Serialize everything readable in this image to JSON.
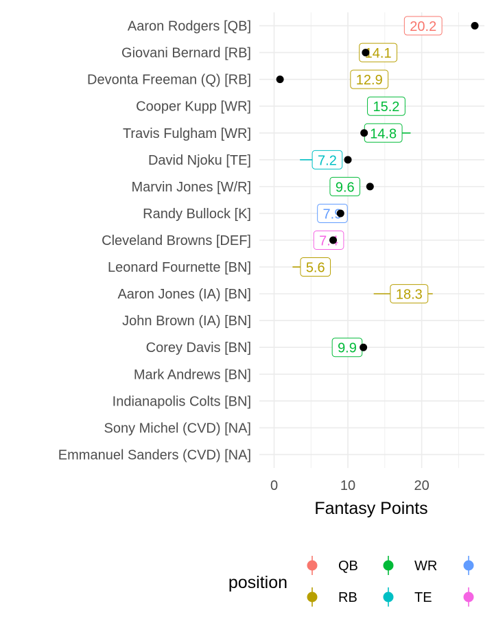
{
  "chart_data": {
    "type": "scatter",
    "xlabel": "Fantasy Points",
    "xlim": [
      -2,
      28.5
    ],
    "x_ticks": [
      0,
      10,
      20
    ],
    "grid": true,
    "legend": {
      "title": "position",
      "placement": "bottom",
      "entries": [
        {
          "name": "QB",
          "color": "#F8766D"
        },
        {
          "name": "RB",
          "color": "#B79F00"
        },
        {
          "name": "WR",
          "color": "#00BA38"
        },
        {
          "name": "TE",
          "color": "#00BFC4"
        },
        {
          "name": "",
          "color": "#619CFF"
        },
        {
          "name": "",
          "color": "#F564E3"
        }
      ]
    },
    "players": [
      {
        "name": "Aaron Rodgers [QB]",
        "position": "QB",
        "projection": 20.2,
        "low": null,
        "high": null,
        "actual": 27.2
      },
      {
        "name": "Giovani Bernard [RB]",
        "position": "RB",
        "projection": 14.1,
        "low": 12.0,
        "high": 16.6,
        "actual": 12.4
      },
      {
        "name": "Devonta Freeman (Q) [RB]",
        "position": "RB",
        "projection": 12.9,
        "low": null,
        "high": null,
        "actual": 0.8
      },
      {
        "name": "Cooper Kupp [WR]",
        "position": "WR",
        "projection": 15.2,
        "low": 13.0,
        "high": 17.8,
        "actual": null
      },
      {
        "name": "Travis Fulgham [WR]",
        "position": "WR",
        "projection": 14.8,
        "low": 12.0,
        "high": 18.5,
        "actual": 12.2
      },
      {
        "name": "David Njoku [TE]",
        "position": "TE",
        "projection": 7.2,
        "low": 3.5,
        "high": 9.0,
        "actual": 10.0
      },
      {
        "name": "Marvin Jones [W/R]",
        "position": "WR",
        "projection": 9.6,
        "low": null,
        "high": null,
        "actual": 13.0
      },
      {
        "name": "Randy Bullock [K]",
        "position": "K",
        "projection": 7.9,
        "low": null,
        "high": null,
        "actual": 9.0
      },
      {
        "name": "Cleveland Browns [DEF]",
        "position": "DEF",
        "projection": 7.4,
        "low": null,
        "high": null,
        "actual": 8.0
      },
      {
        "name": "Leonard Fournette [BN]",
        "position": "RB",
        "projection": 5.6,
        "low": 2.5,
        "high": null,
        "actual": null
      },
      {
        "name": "Aaron Jones (IA) [BN]",
        "position": "RB",
        "projection": 18.3,
        "low": 13.5,
        "high": 21.5,
        "actual": null
      },
      {
        "name": "John Brown (IA) [BN]",
        "position": null,
        "projection": null,
        "low": null,
        "high": null,
        "actual": null
      },
      {
        "name": "Corey Davis [BN]",
        "position": "WR",
        "projection": 9.9,
        "low": null,
        "high": null,
        "actual": 12.1
      },
      {
        "name": "Mark Andrews [BN]",
        "position": null,
        "projection": null,
        "low": null,
        "high": null,
        "actual": null
      },
      {
        "name": "Indianapolis Colts [BN]",
        "position": null,
        "projection": null,
        "low": null,
        "high": null,
        "actual": null
      },
      {
        "name": "Sony Michel (CVD) [NA]",
        "position": null,
        "projection": null,
        "low": null,
        "high": null,
        "actual": null
      },
      {
        "name": "Emmanuel Sanders (CVD) [NA]",
        "position": null,
        "projection": null,
        "low": null,
        "high": null,
        "actual": null
      }
    ],
    "position_colors": {
      "QB": "#F8766D",
      "RB": "#B79F00",
      "WR": "#00BA38",
      "TE": "#00BFC4",
      "K": "#619CFF",
      "DEF": "#F564E3"
    }
  }
}
